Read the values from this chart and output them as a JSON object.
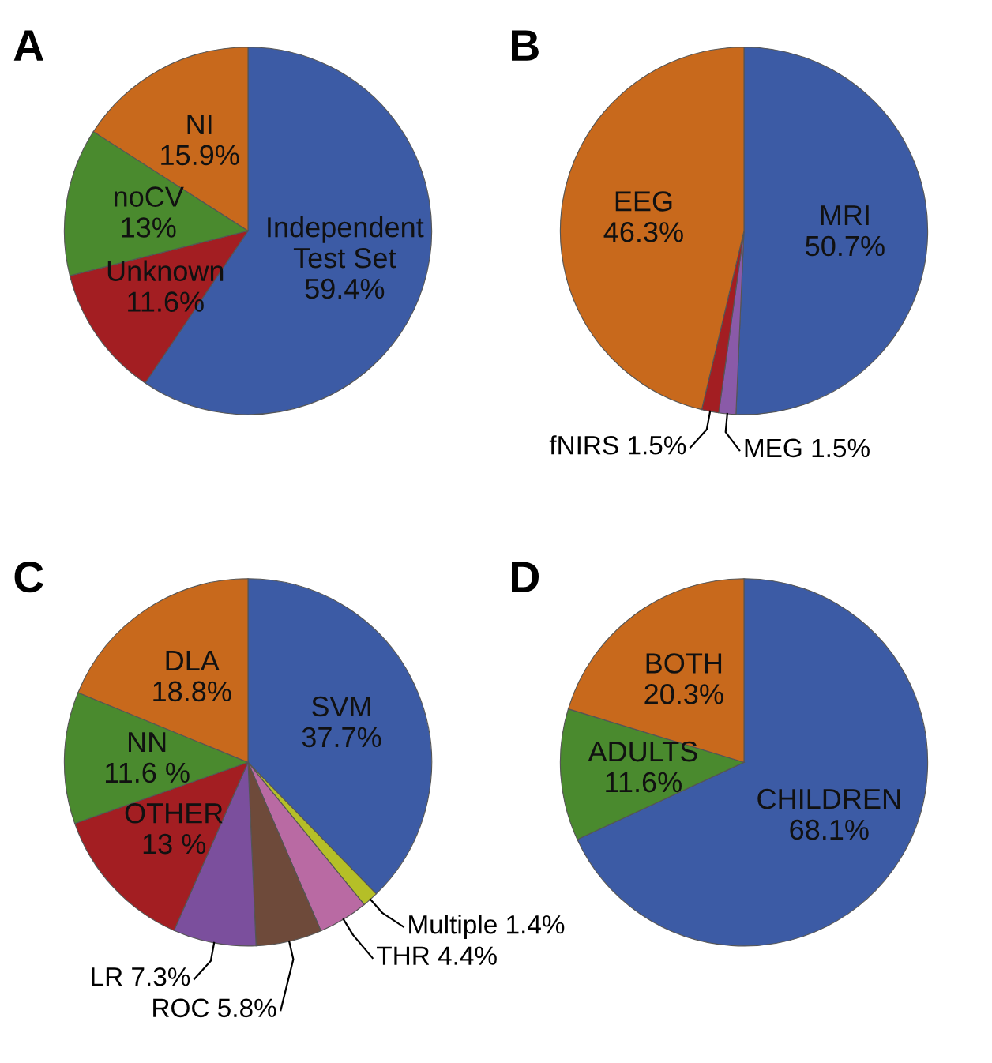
{
  "chart_data": [
    {
      "type": "pie",
      "title": "A",
      "categories": [
        "Independent Test Set",
        "Unknown",
        "noCV",
        "NI"
      ],
      "values": [
        59.4,
        11.6,
        13,
        15.9
      ],
      "value_labels": [
        "59.4%",
        "11.6%",
        "13%",
        "15.9%"
      ],
      "colors": [
        "#3c5ba5",
        "#a31e22",
        "#4a8a2e",
        "#c8691c"
      ]
    },
    {
      "type": "pie",
      "title": "B",
      "categories": [
        "MRI",
        "MEG",
        "fNIRS",
        "EEG"
      ],
      "values": [
        50.7,
        1.5,
        1.5,
        46.3
      ],
      "value_labels": [
        "50.7%",
        "1.5%",
        "1.5%",
        "46.3%"
      ],
      "colors": [
        "#3c5ba5",
        "#8a5aa8",
        "#a31e22",
        "#c8691c"
      ]
    },
    {
      "type": "pie",
      "title": "C",
      "categories": [
        "SVM",
        "Multiple",
        "THR",
        "ROC",
        "LR",
        "OTHER",
        "NN",
        "DLA"
      ],
      "values": [
        37.7,
        1.4,
        4.4,
        5.8,
        7.3,
        13,
        11.6,
        18.8
      ],
      "value_labels": [
        "37.7%",
        "1.4%",
        "4.4%",
        "5.8%",
        "7.3%",
        "13 %",
        "11.6 %",
        "18.8%"
      ],
      "colors": [
        "#3c5ba5",
        "#b5bf27",
        "#b96aa3",
        "#6e4a3a",
        "#7b4f9d",
        "#a31e22",
        "#4a8a2e",
        "#c8691c"
      ]
    },
    {
      "type": "pie",
      "title": "D",
      "categories": [
        "CHILDREN",
        "ADULTS",
        "BOTH"
      ],
      "values": [
        68.1,
        11.6,
        20.3
      ],
      "value_labels": [
        "68.1%",
        "11.6%",
        "20.3%"
      ],
      "colors": [
        "#3c5ba5",
        "#4a8a2e",
        "#c8691c"
      ]
    }
  ]
}
